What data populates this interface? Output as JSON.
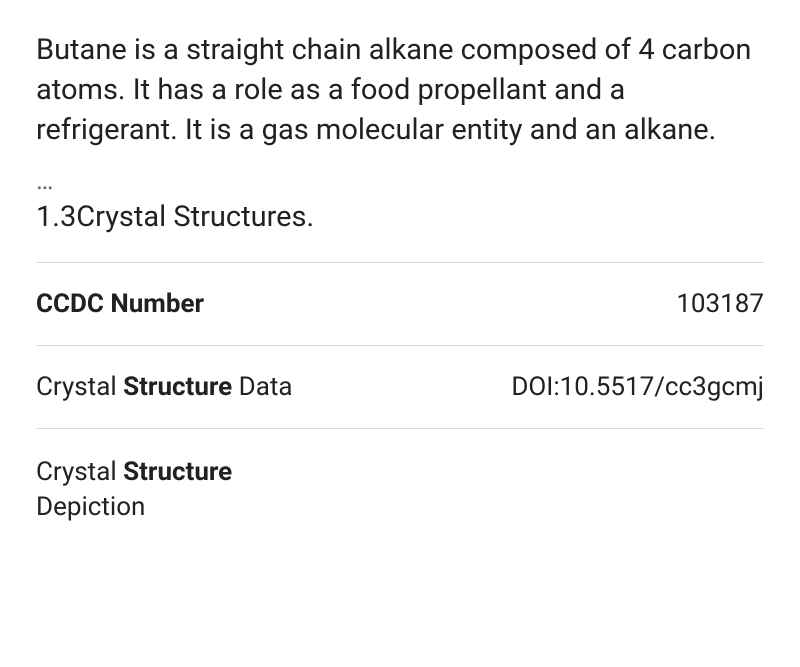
{
  "description": "Butane is a straight chain alkane composed of 4 carbon atoms. It has a role as a food propellant and a refrigerant. It is a gas molecular entity and an alkane.",
  "ellipsis": "…",
  "section_heading": "1.3Crystal Structures.",
  "rows": [
    {
      "label_parts": [
        {
          "text": "CCDC Number",
          "bold": true
        }
      ],
      "value": "103187"
    },
    {
      "label_parts": [
        {
          "text": "Crystal ",
          "bold": false
        },
        {
          "text": "Structure",
          "bold": true
        },
        {
          "text": " Data",
          "bold": false
        }
      ],
      "value": "DOI:10.5517/cc3gcmj"
    },
    {
      "label_parts": [
        {
          "text": "Crystal ",
          "bold": false
        },
        {
          "text": "Structure",
          "bold": true
        },
        {
          "text": " Depiction",
          "bold": false,
          "break_before": true
        }
      ],
      "value": ""
    }
  ],
  "colors": {
    "text": "#212121",
    "muted": "#5f6368",
    "border": "#dadce0",
    "background": "#ffffff"
  },
  "typography": {
    "body_fontsize": 29,
    "row_fontsize": 26,
    "font_family": "Roboto, Arial, sans-serif"
  }
}
